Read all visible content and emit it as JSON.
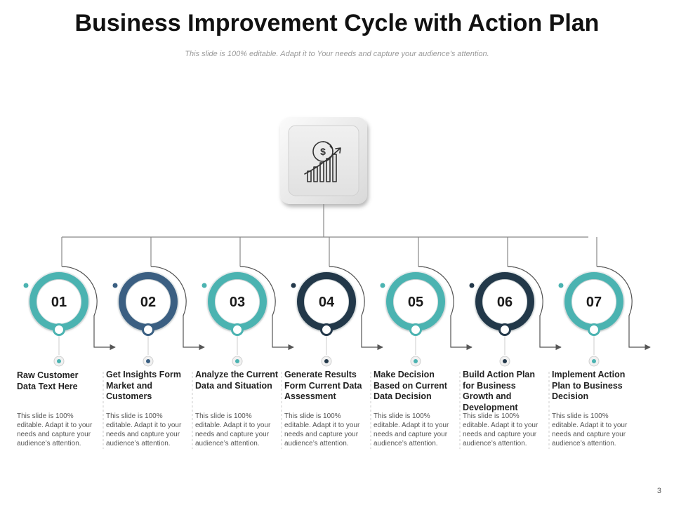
{
  "slide": {
    "title": "Business Improvement Cycle with Action Plan",
    "subtitle": "This slide is 100% editable. Adapt it to Your needs and capture your audience’s attention.",
    "page_number": "3"
  },
  "central_icon": {
    "name": "dollar-growth-chart-icon"
  },
  "colors": {
    "teal": "#4bb3b1",
    "slate_blue": "#3a5f82",
    "navy": "#23384a",
    "line": "#888888"
  },
  "steps": [
    {
      "number": "01",
      "title": "Raw Customer Data Text Here",
      "description": "This slide is 100% editable. Adapt it to your needs and capture your audience’s attention.",
      "color": "#4bb3b1"
    },
    {
      "number": "02",
      "title": "Get Insights Form Market and Customers",
      "description": "This slide is 100% editable. Adapt it to your needs and capture your audience’s attention.",
      "color": "#3a5f82"
    },
    {
      "number": "03",
      "title": "Analyze the Current Data and Situation",
      "description": "This slide is 100% editable. Adapt it to your needs and capture your audience’s attention.",
      "color": "#4bb3b1"
    },
    {
      "number": "04",
      "title": "Generate Results Form Current Data Assessment",
      "description": "This slide is 100% editable. Adapt it to your needs and capture your audience’s attention.",
      "color": "#23384a"
    },
    {
      "number": "05",
      "title": "Make Decision Based on Current Data Decision",
      "description": "This slide is 100% editable. Adapt it to your needs and capture your audience’s attention.",
      "color": "#4bb3b1"
    },
    {
      "number": "06",
      "title": "Build Action Plan for Business Growth and Development",
      "description": "This slide is 100% editable. Adapt it to your needs and capture your audience’s attention.",
      "color": "#23384a"
    },
    {
      "number": "07",
      "title": "Implement Action Plan to Business Decision",
      "description": "This slide is 100% editable. Adapt it to your needs and capture your audience’s attention.",
      "color": "#4bb3b1"
    }
  ]
}
